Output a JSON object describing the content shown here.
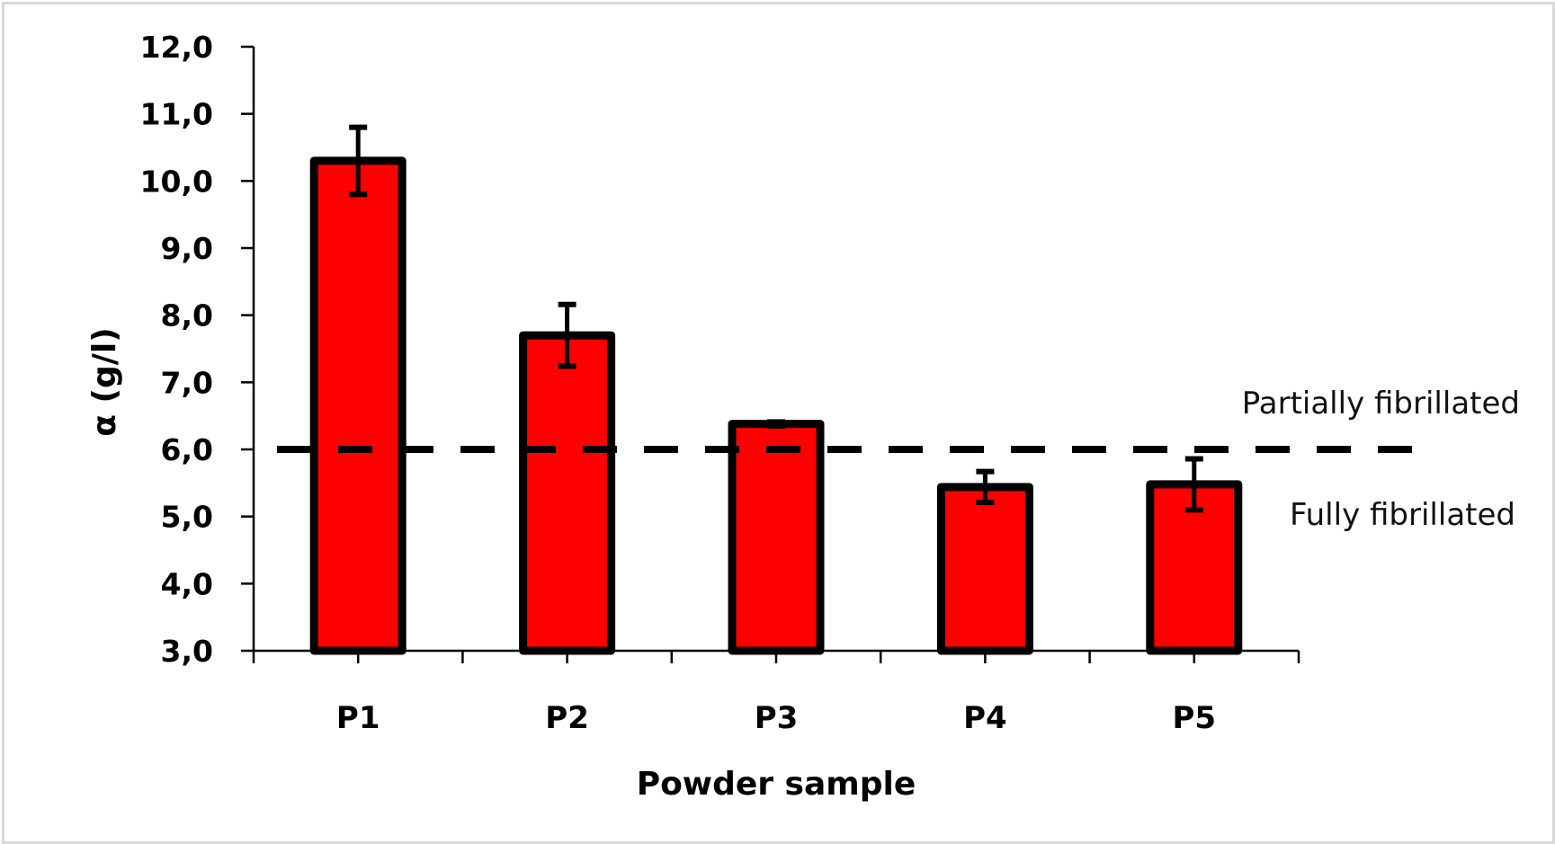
{
  "chart_data": {
    "type": "bar",
    "title": "",
    "xlabel": "Powder sample",
    "ylabel": "α (g/l)",
    "categories": [
      "P1",
      "P2",
      "P3",
      "P4",
      "P5"
    ],
    "values": [
      10.3,
      7.7,
      6.38,
      5.44,
      5.48
    ],
    "error": [
      0.5,
      0.46,
      0.03,
      0.23,
      0.38
    ],
    "ylim": [
      3.0,
      12.0
    ],
    "yticks": [
      "3,0",
      "4,0",
      "5,0",
      "6,0",
      "7,0",
      "8,0",
      "9,0",
      "10,0",
      "11,0",
      "12,0"
    ],
    "grid": false,
    "bar_color": "#ff0000",
    "bar_edge_color": "#000000",
    "reference_line": {
      "y": 6.0,
      "style": "dashed",
      "color": "#000000"
    },
    "annotations": [
      {
        "text": "Partially fibrillated",
        "position": "above reference line, right"
      },
      {
        "text": "Fully fibrillated",
        "position": "below reference line, right"
      }
    ],
    "legend": null
  },
  "labels": {
    "xlabel": "Powder sample",
    "ylabel": "α (g/l)",
    "annot_above": "Partially fibrillated",
    "annot_below": "Fully fibrillated"
  }
}
